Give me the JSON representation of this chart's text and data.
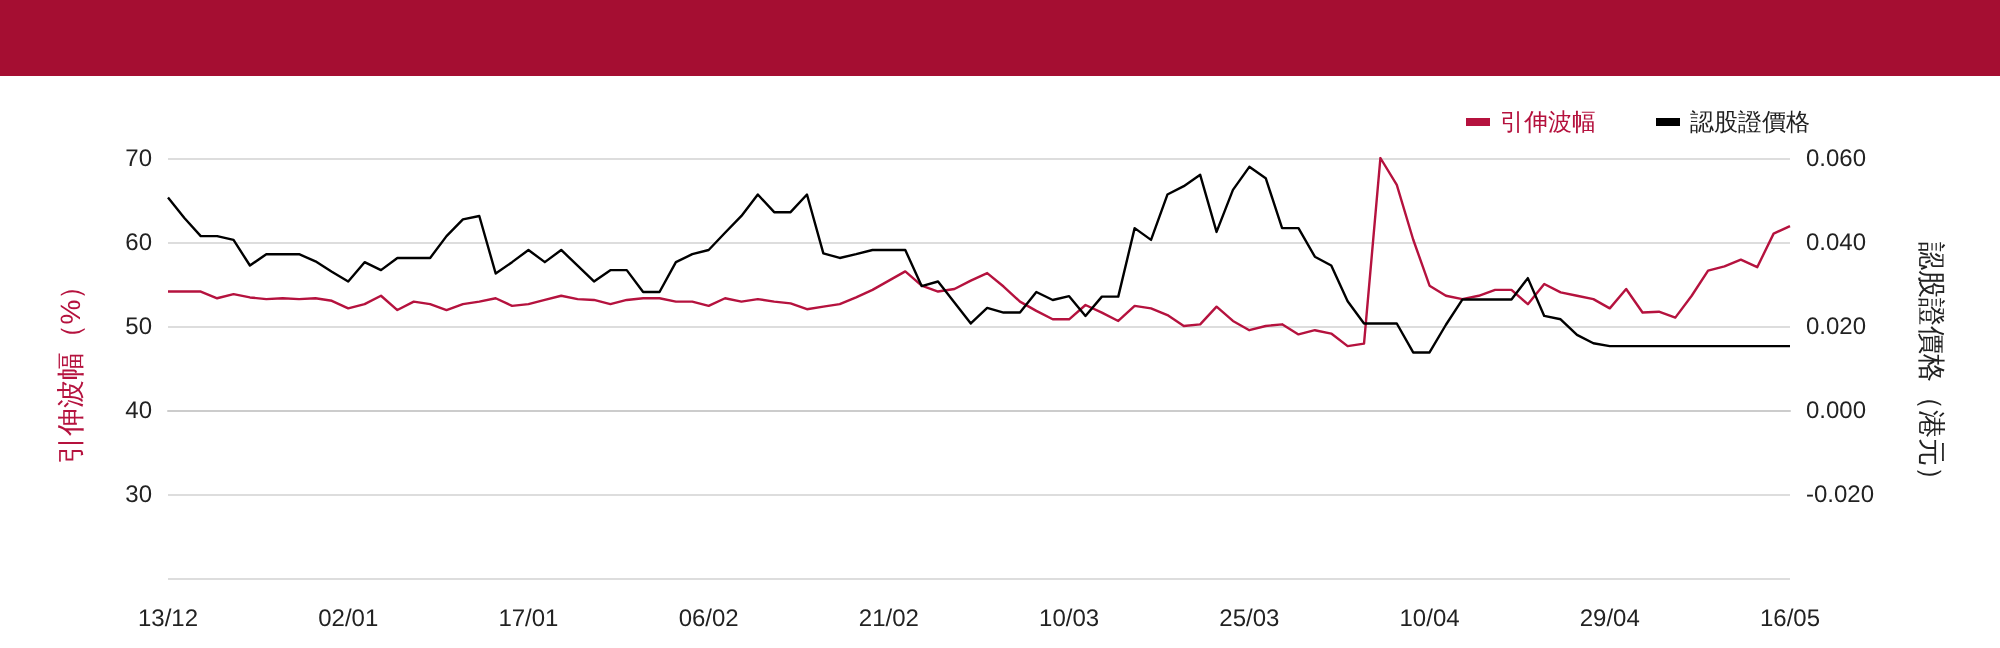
{
  "chart_data": {
    "type": "line",
    "ylabel": "引伸波幅（%）",
    "y2label": "認股證價格（港元）",
    "categories": [
      "13/12",
      null,
      null,
      null,
      null,
      null,
      null,
      null,
      null,
      null,
      null,
      "02/01",
      null,
      null,
      null,
      null,
      null,
      null,
      null,
      null,
      null,
      null,
      "17/01",
      null,
      null,
      null,
      null,
      null,
      null,
      null,
      null,
      null,
      null,
      "06/02",
      null,
      null,
      null,
      null,
      null,
      null,
      null,
      null,
      null,
      null,
      "21/02",
      null,
      null,
      null,
      null,
      null,
      null,
      null,
      null,
      null,
      null,
      "10/03",
      null,
      null,
      null,
      null,
      null,
      null,
      null,
      null,
      null,
      null,
      "25/03",
      null,
      null,
      null,
      null,
      null,
      null,
      null,
      null,
      null,
      null,
      "10/04",
      null,
      null,
      null,
      null,
      null,
      null,
      null,
      null,
      null,
      null,
      "29/04",
      null,
      null,
      null,
      null,
      null,
      null,
      null,
      null,
      null,
      null,
      "16/05"
    ],
    "series": [
      {
        "name": "引伸波幅",
        "color": "#b5123e",
        "values": [
          54.1,
          54.1,
          54.1,
          53.3,
          53.8,
          53.4,
          53.2,
          53.3,
          53.2,
          53.3,
          53.0,
          52.1,
          52.6,
          53.6,
          51.9,
          52.9,
          52.6,
          51.9,
          52.6,
          52.9,
          53.3,
          52.4,
          52.6,
          53.1,
          53.6,
          53.2,
          53.1,
          52.6,
          53.1,
          53.3,
          53.3,
          52.9,
          52.9,
          52.4,
          53.3,
          52.9,
          53.2,
          52.9,
          52.7,
          52.0,
          52.3,
          52.6,
          53.4,
          54.3,
          55.4,
          56.5,
          54.8,
          54.1,
          54.4,
          55.4,
          56.3,
          54.7,
          52.9,
          51.8,
          50.8,
          50.8,
          52.5,
          51.6,
          50.6,
          52.4,
          52.1,
          51.3,
          50.0,
          50.2,
          52.3,
          50.6,
          49.5,
          50.0,
          50.2,
          49.0,
          49.5,
          49.1,
          47.6,
          47.9,
          70.0,
          66.8,
          60.3,
          54.8,
          53.6,
          53.2,
          53.6,
          54.3,
          54.3,
          52.6,
          55.0,
          54.0,
          53.6,
          53.2,
          52.1,
          54.4,
          51.6,
          51.7,
          51.0,
          53.6,
          56.6,
          57.1,
          57.9,
          57.0,
          61.0,
          61.9
        ]
      },
      {
        "name": "認股證價格",
        "color": "#000000",
        "axis": "y2",
        "values": [
          0.0506,
          0.0457,
          0.0414,
          0.0414,
          0.0405,
          0.0344,
          0.0371,
          0.0371,
          0.0371,
          0.0354,
          0.0329,
          0.0306,
          0.0352,
          0.0333,
          0.0362,
          0.0362,
          0.0362,
          0.0414,
          0.0454,
          0.0462,
          0.0325,
          0.0352,
          0.0381,
          0.0352,
          0.0381,
          0.0344,
          0.0306,
          0.0333,
          0.0333,
          0.0281,
          0.0281,
          0.0352,
          0.0371,
          0.0381,
          0.0422,
          0.0462,
          0.0513,
          0.0471,
          0.0471,
          0.0513,
          0.0373,
          0.0362,
          0.0371,
          0.0381,
          0.0381,
          0.0381,
          0.0295,
          0.0306,
          0.0256,
          0.0206,
          0.0243,
          0.0232,
          0.0232,
          0.0281,
          0.0262,
          0.0271,
          0.0224,
          0.027,
          0.027,
          0.0433,
          0.0405,
          0.0513,
          0.0533,
          0.056,
          0.0424,
          0.0524,
          0.0579,
          0.0552,
          0.0433,
          0.0433,
          0.0365,
          0.0344,
          0.0259,
          0.0206,
          0.0206,
          0.0206,
          0.0137,
          0.0137,
          0.0203,
          0.0263,
          0.0263,
          0.0263,
          0.0263,
          0.0314,
          0.0224,
          0.0216,
          0.0179,
          0.0159,
          0.0152,
          0.0152,
          0.0152,
          0.0152,
          0.0152,
          0.0152,
          0.0152,
          0.0152,
          0.0152,
          0.0152,
          0.0152,
          0.0152
        ]
      }
    ],
    "ylim": [
      20,
      70
    ],
    "yticks": [
      {
        "value": 20,
        "label": null
      },
      30,
      40,
      50,
      60,
      70
    ],
    "y2lim": [
      -0.04,
      0.06
    ],
    "y2ticks": [
      {
        "value": -0.04,
        "label": null
      },
      {
        "value": -0.02,
        "label": "-0.020"
      },
      {
        "value": 0,
        "label": "0.000"
      },
      {
        "value": 0.02,
        "label": "0.020"
      },
      {
        "value": 0.04,
        "label": "0.040"
      },
      {
        "value": 0.06,
        "label": "0.060"
      }
    ],
    "grid": "y",
    "legend": "top right",
    "marker": "none",
    "line_style": "solid"
  }
}
